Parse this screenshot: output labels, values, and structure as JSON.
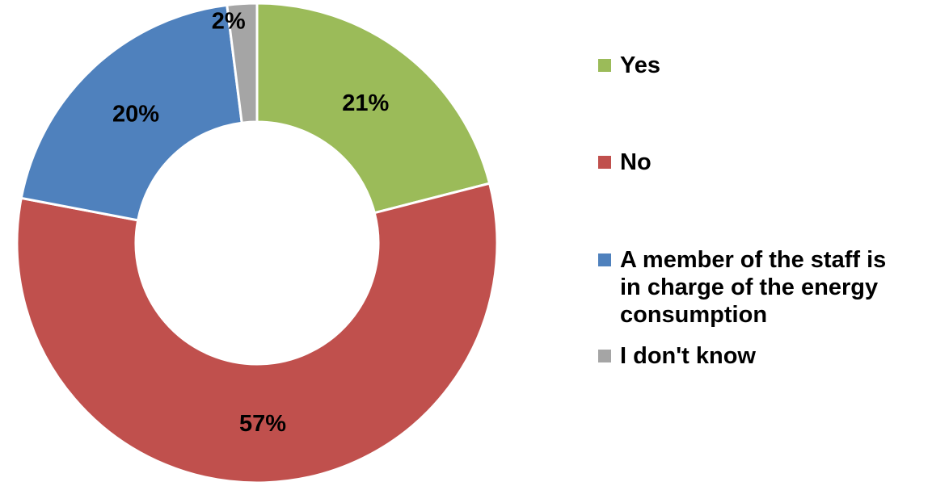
{
  "chart_data": {
    "type": "pie",
    "variant": "donut",
    "categories": [
      "Yes",
      "No",
      "A member of the staff is in charge of the energy consumption",
      "I don't know"
    ],
    "values": [
      21,
      57,
      20,
      2
    ],
    "labels": [
      "21%",
      "57%",
      "20%",
      "2%"
    ],
    "colors": [
      "#9bbb59",
      "#c0504d",
      "#4f81bd",
      "#a5a5a5"
    ],
    "legend_position": "right"
  }
}
